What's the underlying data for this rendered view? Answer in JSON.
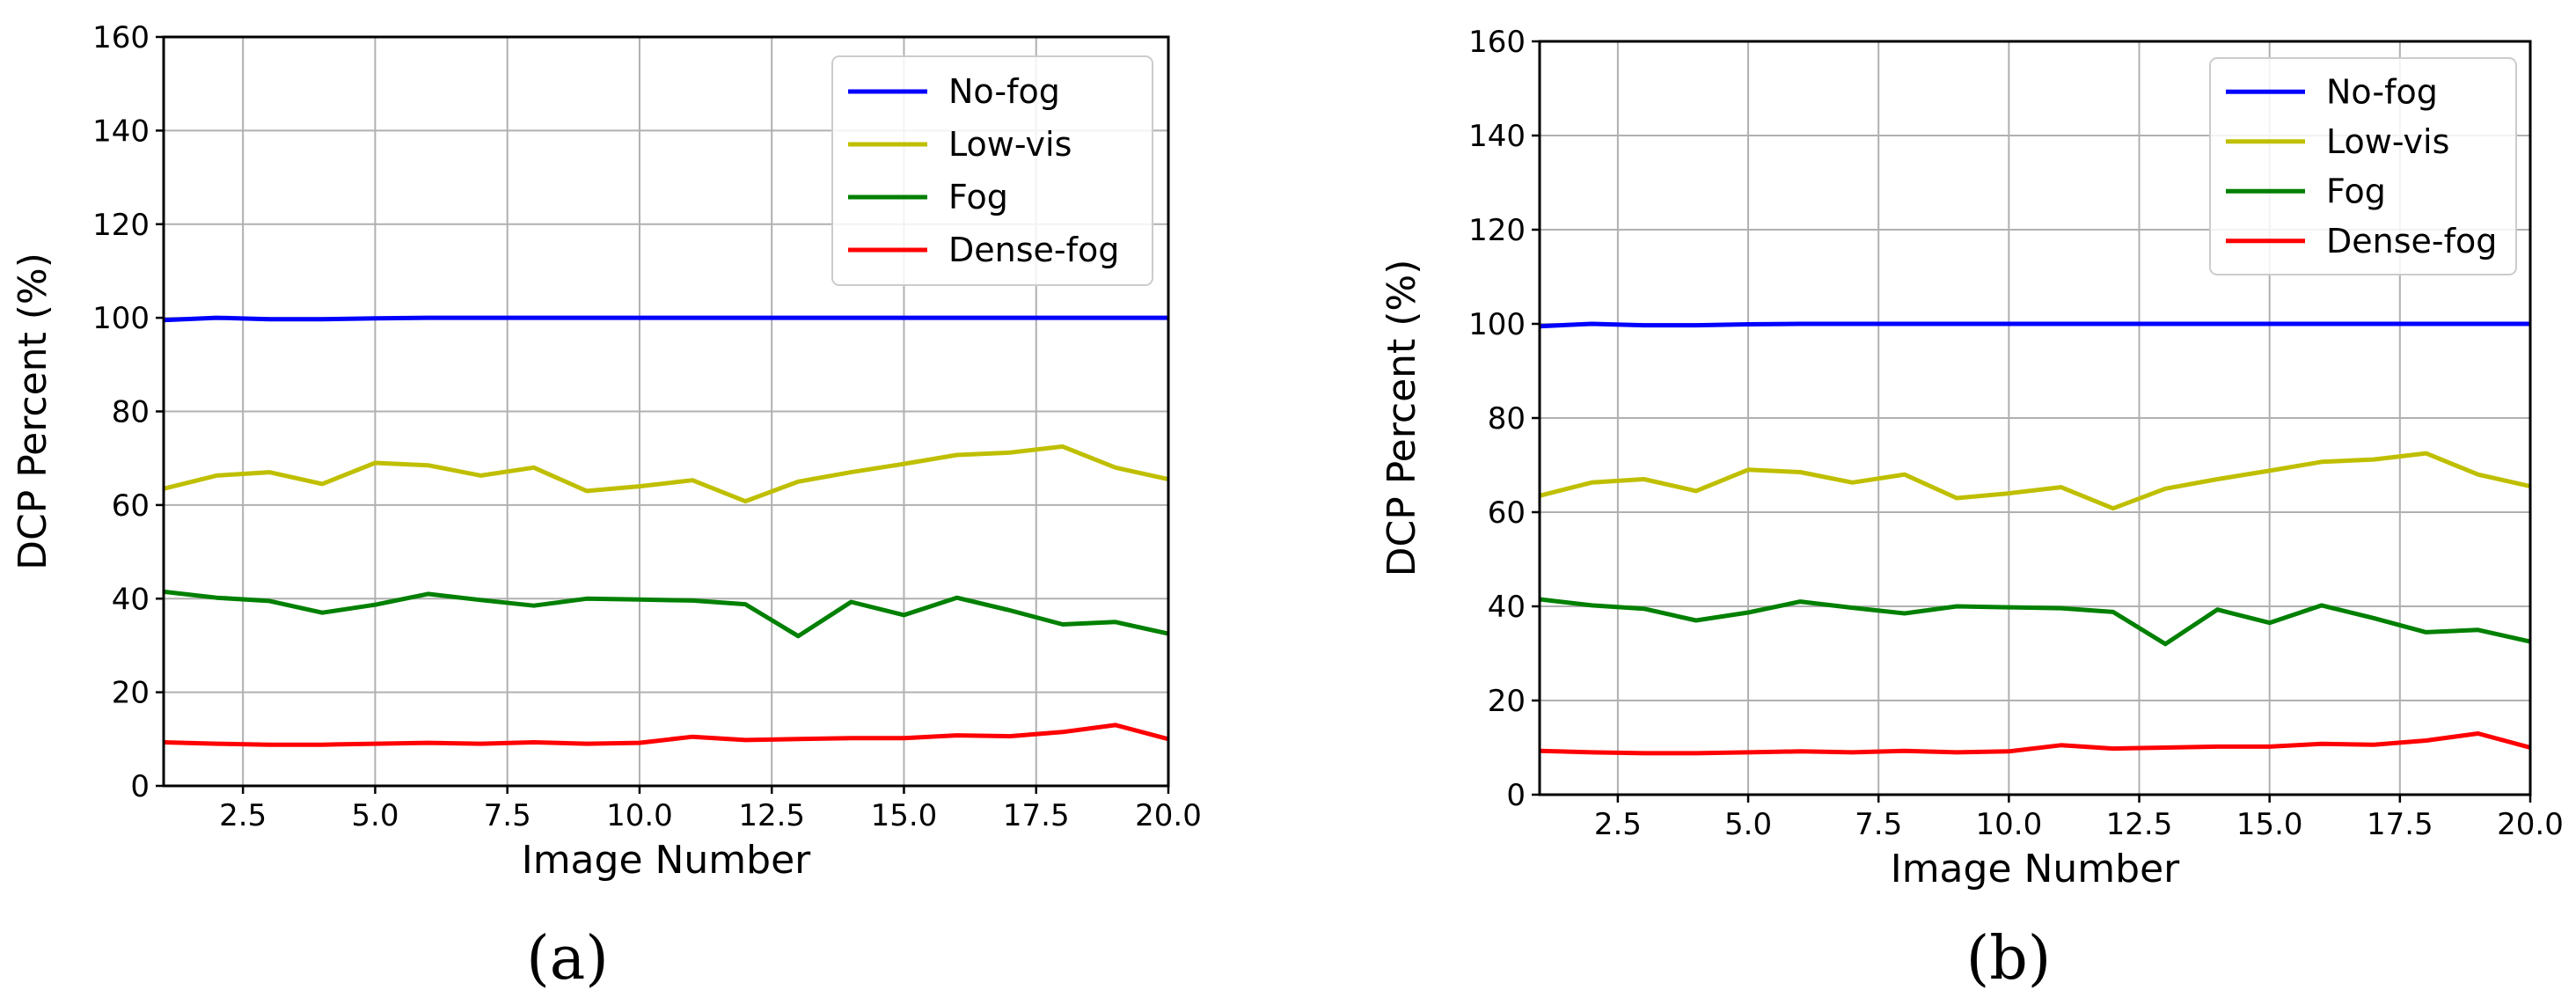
{
  "chart_data": [
    {
      "type": "line",
      "panel_label": "(a)",
      "xlabel": "Image Number",
      "ylabel": "DCP Percent (%)",
      "xlim": [
        1,
        20
      ],
      "ylim": [
        0,
        160
      ],
      "xticks": [
        2.5,
        5.0,
        7.5,
        10.0,
        12.5,
        15.0,
        17.5,
        20.0
      ],
      "xtick_labels": [
        "2.5",
        "5.0",
        "7.5",
        "10.0",
        "12.5",
        "15.0",
        "17.5",
        "20.0"
      ],
      "yticks": [
        0,
        20,
        40,
        60,
        80,
        100,
        120,
        140,
        160
      ],
      "ytick_labels": [
        "0",
        "20",
        "40",
        "60",
        "80",
        "100",
        "120",
        "140",
        "160"
      ],
      "grid": true,
      "legend_position": "top-right",
      "x": [
        1,
        2,
        3,
        4,
        5,
        6,
        7,
        8,
        9,
        10,
        11,
        12,
        13,
        14,
        15,
        16,
        17,
        18,
        19,
        20
      ],
      "series": [
        {
          "name": "No-fog",
          "color": "#0000ff",
          "values": [
            99.5,
            100,
            99.7,
            99.7,
            99.9,
            100,
            100,
            100,
            100,
            100,
            100,
            100,
            100,
            100,
            100,
            100,
            100,
            100,
            100,
            100
          ]
        },
        {
          "name": "Low-vis",
          "color": "#bfbf00",
          "values": [
            63.5,
            66.3,
            67,
            64.5,
            69,
            68.5,
            66.3,
            68,
            63,
            64,
            65.3,
            60.8,
            65,
            67,
            68.8,
            70.7,
            71.2,
            72.5,
            68,
            65.5
          ]
        },
        {
          "name": "Fog",
          "color": "#008000",
          "values": [
            41.5,
            40.2,
            39.5,
            37,
            38.7,
            41,
            39.7,
            38.5,
            40,
            39.8,
            39.6,
            38.8,
            32,
            39.3,
            36.5,
            40.2,
            37.5,
            34.5,
            35,
            32.5
          ]
        },
        {
          "name": "Dense-fog",
          "color": "#ff0000",
          "values": [
            9.3,
            9,
            8.8,
            8.8,
            9,
            9.2,
            9,
            9.3,
            9,
            9.2,
            10.5,
            9.8,
            10,
            10.2,
            10.2,
            10.8,
            10.6,
            11.5,
            13,
            10
          ]
        }
      ]
    },
    {
      "type": "line",
      "panel_label": "(b)",
      "xlabel": "Image Number",
      "ylabel": "DCP Percent (%)",
      "xlim": [
        1,
        20
      ],
      "ylim": [
        0,
        160
      ],
      "xticks": [
        2.5,
        5.0,
        7.5,
        10.0,
        12.5,
        15.0,
        17.5,
        20.0
      ],
      "xtick_labels": [
        "2.5",
        "5.0",
        "7.5",
        "10.0",
        "12.5",
        "15.0",
        "17.5",
        "20.0"
      ],
      "yticks": [
        0,
        20,
        40,
        60,
        80,
        100,
        120,
        140,
        160
      ],
      "ytick_labels": [
        "0",
        "20",
        "40",
        "60",
        "80",
        "100",
        "120",
        "140",
        "160"
      ],
      "grid": true,
      "legend_position": "top-right",
      "x": [
        1,
        2,
        3,
        4,
        5,
        6,
        7,
        8,
        9,
        10,
        11,
        12,
        13,
        14,
        15,
        16,
        17,
        18,
        19,
        20
      ],
      "series": [
        {
          "name": "No-fog",
          "color": "#0000ff",
          "values": [
            99.5,
            100,
            99.7,
            99.7,
            99.9,
            100,
            100,
            100,
            100,
            100,
            100,
            100,
            100,
            100,
            100,
            100,
            100,
            100,
            100,
            100
          ]
        },
        {
          "name": "Low-vis",
          "color": "#bfbf00",
          "values": [
            63.5,
            66.3,
            67,
            64.5,
            69,
            68.5,
            66.3,
            68,
            63,
            64,
            65.3,
            60.8,
            65,
            67,
            68.8,
            70.7,
            71.2,
            72.5,
            68,
            65.5
          ]
        },
        {
          "name": "Fog",
          "color": "#008000",
          "values": [
            41.5,
            40.2,
            39.5,
            37,
            38.7,
            41,
            39.7,
            38.5,
            40,
            39.8,
            39.6,
            38.8,
            32,
            39.3,
            36.5,
            40.2,
            37.5,
            34.5,
            35,
            32.5
          ]
        },
        {
          "name": "Dense-fog",
          "color": "#ff0000",
          "values": [
            9.3,
            9,
            8.8,
            8.8,
            9,
            9.2,
            9,
            9.3,
            9,
            9.2,
            10.5,
            9.8,
            10,
            10.2,
            10.2,
            10.8,
            10.6,
            11.5,
            13,
            10
          ]
        }
      ]
    }
  ]
}
